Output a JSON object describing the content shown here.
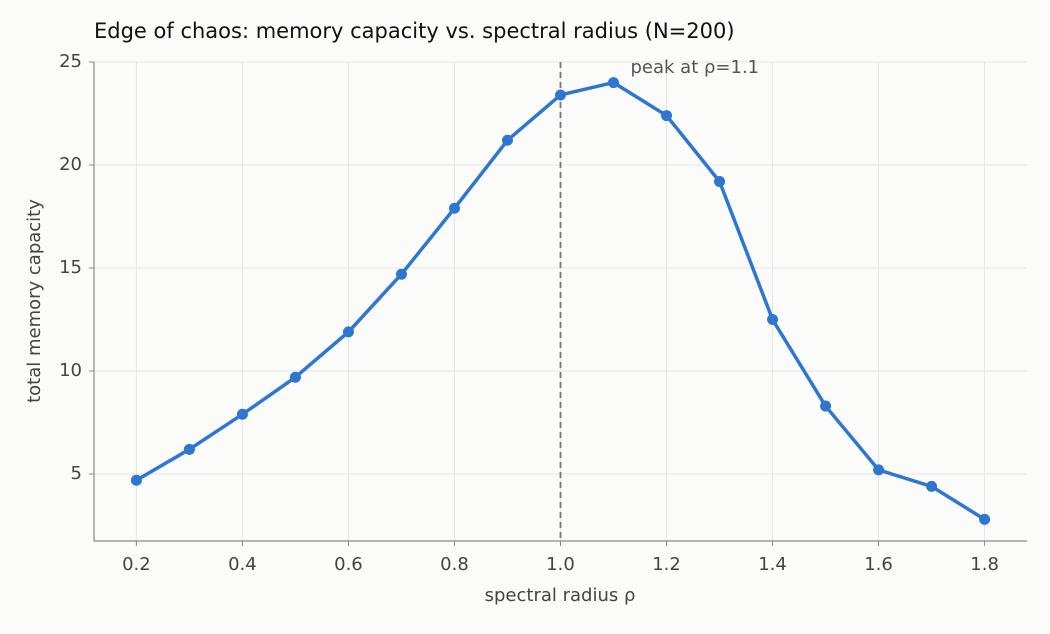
{
  "chart_data": {
    "type": "line",
    "title": "Edge of chaos: memory capacity vs. spectral radius (N=200)",
    "xlabel": "spectral radius ρ",
    "ylabel": "total memory capacity",
    "x": [
      0.2,
      0.3,
      0.4,
      0.5,
      0.6,
      0.7,
      0.8,
      0.9,
      1.0,
      1.1,
      1.2,
      1.3,
      1.4,
      1.5,
      1.6,
      1.7,
      1.8
    ],
    "values": [
      4.7,
      6.2,
      7.9,
      9.7,
      11.9,
      14.7,
      17.9,
      21.2,
      23.4,
      24.0,
      22.4,
      19.2,
      12.5,
      8.3,
      5.2,
      4.4,
      2.8
    ],
    "color": "#2e77d0",
    "xlim": [
      0.12,
      1.88
    ],
    "ylim": [
      1.75,
      25
    ],
    "xticks": [
      0.2,
      0.4,
      0.6,
      0.8,
      {
        "value": 1,
        "label": "1.0"
      },
      1.2,
      1.4,
      1.6,
      1.8
    ],
    "yticks": [
      5,
      10,
      15,
      20,
      25
    ],
    "grid": true,
    "vline": 1,
    "annotation": "peak at ρ=1.1"
  }
}
